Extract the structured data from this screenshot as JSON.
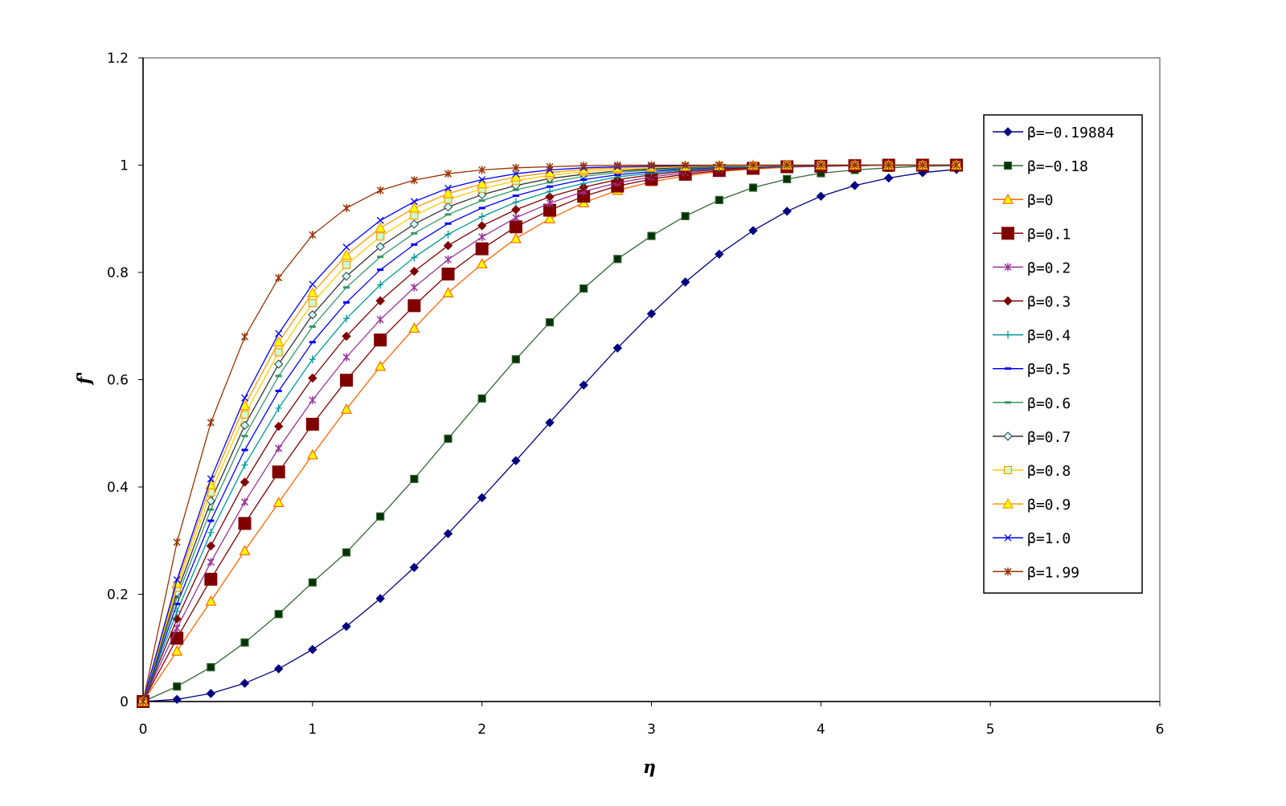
{
  "chart_data": {
    "type": "line",
    "title": "",
    "xlabel": "η",
    "ylabel": "f'",
    "xlim": [
      0,
      6
    ],
    "ylim": [
      0,
      1.2
    ],
    "xticks": [
      "0",
      "1",
      "2",
      "3",
      "4",
      "5",
      "6"
    ],
    "yticks": [
      "0",
      "0.2",
      "0.4",
      "0.6",
      "0.8",
      "1",
      "1.2"
    ],
    "grid": false,
    "legend_position": "right",
    "x": [
      0,
      0.2,
      0.4,
      0.6,
      0.8,
      1.0,
      1.2,
      1.4,
      1.6,
      1.8,
      2.0,
      2.2,
      2.4,
      2.6,
      2.8,
      3.0,
      3.2,
      3.4,
      3.6,
      3.8,
      4.0,
      4.2,
      4.4,
      4.6,
      4.8
    ],
    "series": [
      {
        "name": "β=−0.19884",
        "color": "#000080",
        "fill": "#000080",
        "marker": "diamond",
        "values": [
          0,
          0.004,
          0.015,
          0.034,
          0.061,
          0.097,
          0.14,
          0.192,
          0.25,
          0.313,
          0.38,
          0.449,
          0.52,
          0.59,
          0.659,
          0.723,
          0.782,
          0.834,
          0.878,
          0.914,
          0.942,
          0.962,
          0.976,
          0.986,
          0.992
        ]
      },
      {
        "name": "β=−0.18",
        "color": "#336633",
        "fill": "#003300",
        "marker": "square",
        "values": [
          0,
          0.028,
          0.064,
          0.11,
          0.163,
          0.222,
          0.278,
          0.345,
          0.415,
          0.49,
          0.565,
          0.638,
          0.707,
          0.77,
          0.825,
          0.868,
          0.905,
          0.935,
          0.958,
          0.974,
          0.985,
          0.991,
          0.995,
          0.998,
          0.999
        ]
      },
      {
        "name": "β=0",
        "color": "#ff6600",
        "fill": "#ffff00",
        "marker": "triangle",
        "values": [
          0,
          0.094,
          0.187,
          0.281,
          0.371,
          0.46,
          0.545,
          0.625,
          0.696,
          0.762,
          0.816,
          0.863,
          0.9,
          0.93,
          0.953,
          0.969,
          0.98,
          0.988,
          0.993,
          0.996,
          0.998,
          0.999,
          1,
          1,
          1
        ]
      },
      {
        "name": "β=0.1",
        "color": "#800000",
        "fill": "#800000",
        "marker": "bigsquare",
        "values": [
          0,
          0.118,
          0.228,
          0.332,
          0.428,
          0.517,
          0.599,
          0.674,
          0.738,
          0.797,
          0.844,
          0.885,
          0.916,
          0.942,
          0.961,
          0.974,
          0.983,
          0.99,
          0.994,
          0.997,
          0.998,
          0.999,
          1,
          1,
          1
        ]
      },
      {
        "name": "β=0.2",
        "color": "#993399",
        "fill": "#993399",
        "marker": "asterisk",
        "values": [
          0,
          0.137,
          0.26,
          0.372,
          0.472,
          0.562,
          0.642,
          0.712,
          0.772,
          0.824,
          0.866,
          0.902,
          0.929,
          0.951,
          0.967,
          0.978,
          0.986,
          0.992,
          0.995,
          0.997,
          0.999,
          0.999,
          1,
          1,
          1
        ]
      },
      {
        "name": "β=0.3",
        "color": "#800000",
        "fill": "#800000",
        "marker": "diamond",
        "values": [
          0,
          0.154,
          0.29,
          0.409,
          0.513,
          0.603,
          0.681,
          0.747,
          0.802,
          0.85,
          0.887,
          0.917,
          0.941,
          0.959,
          0.973,
          0.982,
          0.989,
          0.993,
          0.996,
          0.998,
          0.999,
          0.999,
          1,
          1,
          1
        ]
      },
      {
        "name": "β=0.4",
        "color": "#009999",
        "fill": "#009999",
        "marker": "plus",
        "values": [
          0,
          0.168,
          0.315,
          0.441,
          0.547,
          0.638,
          0.714,
          0.777,
          0.828,
          0.871,
          0.904,
          0.931,
          0.951,
          0.966,
          0.978,
          0.985,
          0.991,
          0.995,
          0.997,
          0.998,
          0.999,
          1,
          1,
          1,
          1
        ]
      },
      {
        "name": "β=0.5",
        "color": "#0000ff",
        "fill": "#0000ff",
        "marker": "dash",
        "values": [
          0,
          0.182,
          0.337,
          0.469,
          0.579,
          0.67,
          0.744,
          0.805,
          0.852,
          0.891,
          0.92,
          0.943,
          0.96,
          0.973,
          0.982,
          0.988,
          0.993,
          0.996,
          0.998,
          0.999,
          0.999,
          1,
          1,
          1,
          1
        ]
      },
      {
        "name": "β=0.6",
        "color": "#339966",
        "fill": "#339966",
        "marker": "dash",
        "values": [
          0,
          0.194,
          0.358,
          0.495,
          0.607,
          0.699,
          0.772,
          0.829,
          0.873,
          0.908,
          0.934,
          0.954,
          0.968,
          0.979,
          0.986,
          0.991,
          0.994,
          0.997,
          0.998,
          0.999,
          1,
          1,
          1,
          1,
          1
        ]
      },
      {
        "name": "β=0.7",
        "color": "#333333",
        "fill": "#ccffff",
        "marker": "diamond",
        "values": [
          0,
          0.203,
          0.374,
          0.515,
          0.629,
          0.721,
          0.793,
          0.848,
          0.89,
          0.922,
          0.945,
          0.962,
          0.975,
          0.983,
          0.989,
          0.993,
          0.996,
          0.998,
          0.999,
          0.999,
          1,
          1,
          1,
          1,
          1
        ]
      },
      {
        "name": "β=0.8",
        "color": "#ffcc00",
        "fill": "#ccffcc",
        "stroke": "#ff9900",
        "marker": "square",
        "values": [
          0,
          0.212,
          0.39,
          0.535,
          0.651,
          0.743,
          0.814,
          0.867,
          0.906,
          0.936,
          0.956,
          0.971,
          0.981,
          0.988,
          0.992,
          0.995,
          0.997,
          0.999,
          0.999,
          1,
          1,
          1,
          1,
          1,
          1
        ]
      },
      {
        "name": "β=0.9",
        "color": "#ff9900",
        "fill": "#ffff00",
        "marker": "triangle",
        "values": [
          0,
          0.22,
          0.404,
          0.552,
          0.67,
          0.762,
          0.832,
          0.883,
          0.92,
          0.947,
          0.965,
          0.978,
          0.986,
          0.992,
          0.995,
          0.997,
          0.998,
          0.999,
          1,
          1,
          1,
          1,
          1,
          1,
          1
        ]
      },
      {
        "name": "β=1.0",
        "color": "#0000ff",
        "fill": "#0000ff",
        "marker": "x",
        "values": [
          0,
          0.227,
          0.415,
          0.566,
          0.686,
          0.778,
          0.847,
          0.897,
          0.932,
          0.957,
          0.973,
          0.984,
          0.991,
          0.995,
          0.997,
          0.998,
          0.999,
          1,
          1,
          1,
          1,
          1,
          1,
          1,
          1
        ]
      },
      {
        "name": "β=1.99",
        "color": "#993300",
        "fill": "#993300",
        "marker": "asterisk",
        "values": [
          0,
          0.297,
          0.52,
          0.68,
          0.79,
          0.87,
          0.92,
          0.953,
          0.972,
          0.984,
          0.991,
          0.995,
          0.997,
          0.999,
          1,
          1,
          1,
          1,
          1,
          1,
          1,
          1,
          1,
          1,
          1
        ]
      }
    ]
  }
}
